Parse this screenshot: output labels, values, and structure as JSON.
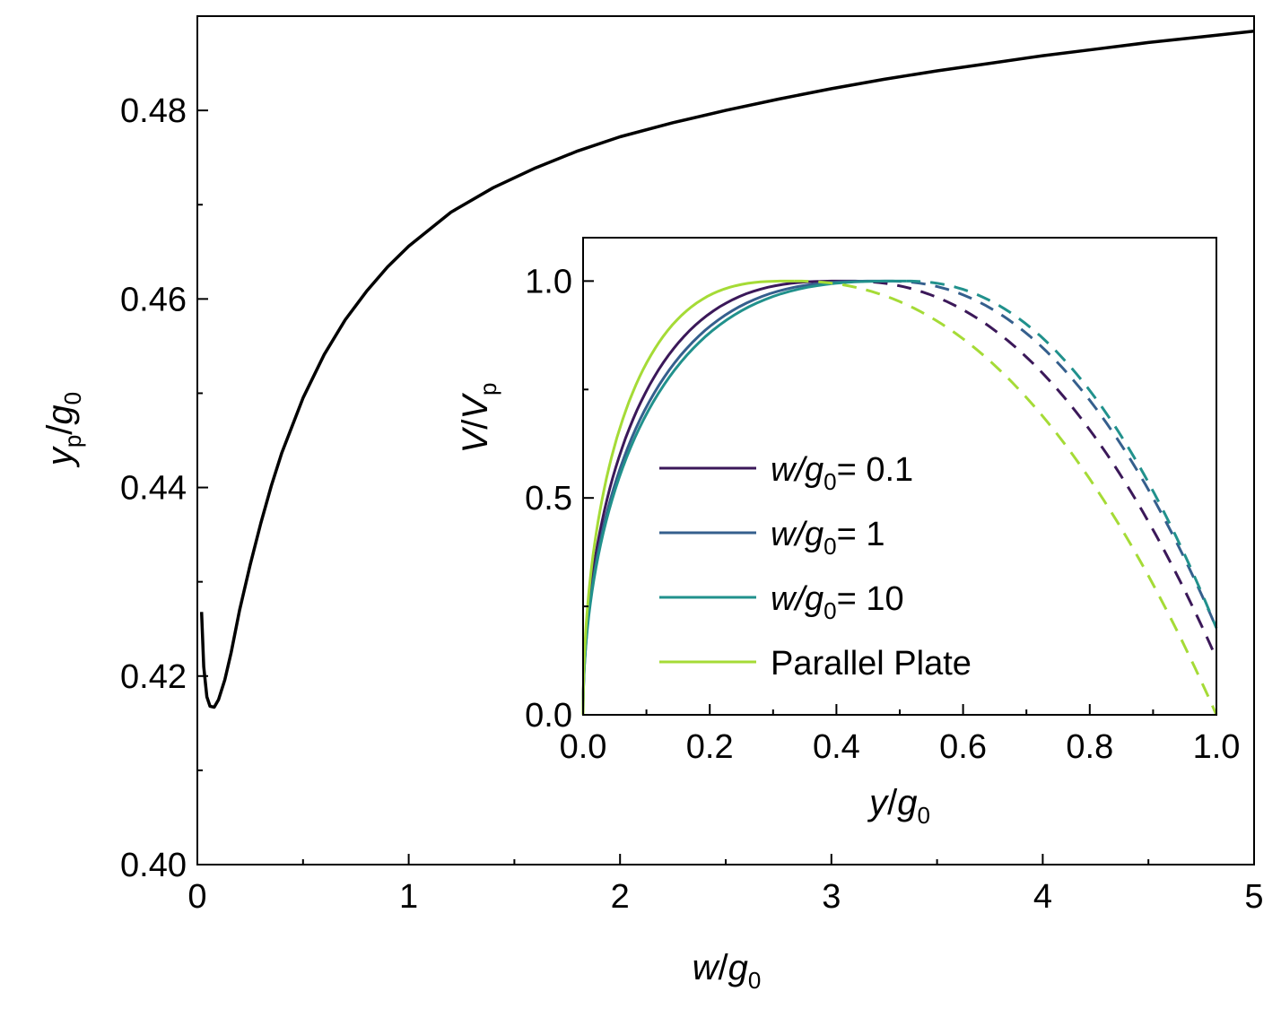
{
  "chart_data": [
    {
      "type": "line",
      "xlabel": {
        "base": "w",
        "sep": "/",
        "var": "g",
        "sub": "0"
      },
      "ylabel": {
        "base": "y",
        "base_sub": "p",
        "sep": "/",
        "var": "g",
        "sub": "0"
      },
      "xlim": [
        0,
        5
      ],
      "ylim": [
        0.4,
        0.49
      ],
      "xticks": [
        "0",
        "1",
        "2",
        "3",
        "4",
        "5"
      ],
      "xtick_values": [
        0,
        1,
        2,
        3,
        4,
        5
      ],
      "yticks": [
        "0.40",
        "0.42",
        "0.44",
        "0.46",
        "0.48"
      ],
      "ytick_values": [
        0.4,
        0.42,
        0.44,
        0.46,
        0.48
      ],
      "grid": false,
      "series": [
        {
          "color": "#000000",
          "x": [
            0.02,
            0.03,
            0.045,
            0.06,
            0.08,
            0.1,
            0.13,
            0.16,
            0.2,
            0.25,
            0.3,
            0.35,
            0.4,
            0.5,
            0.6,
            0.7,
            0.8,
            0.9,
            1.0,
            1.2,
            1.4,
            1.6,
            1.8,
            2.0,
            2.25,
            2.5,
            2.75,
            3.0,
            3.25,
            3.5,
            3.75,
            4.0,
            4.25,
            4.5,
            4.75,
            5.0
          ],
          "y": [
            0.4268,
            0.421,
            0.4178,
            0.4168,
            0.4167,
            0.4175,
            0.4196,
            0.4225,
            0.427,
            0.4318,
            0.4362,
            0.4402,
            0.4437,
            0.4495,
            0.4541,
            0.4578,
            0.4608,
            0.4634,
            0.4656,
            0.4692,
            0.4718,
            0.4739,
            0.4757,
            0.4772,
            0.4787,
            0.48,
            0.4812,
            0.4823,
            0.4833,
            0.4842,
            0.485,
            0.4858,
            0.4865,
            0.4872,
            0.4878,
            0.4884
          ]
        }
      ]
    },
    {
      "type": "line",
      "xlabel": {
        "base": "y",
        "sep": "/",
        "var": "g",
        "sub": "0"
      },
      "ylabel": {
        "base": "V",
        "sep": "/",
        "var": "V",
        "sub": "p"
      },
      "xlim": [
        0,
        1.0
      ],
      "ylim": [
        0,
        1.1
      ],
      "xticks": [
        "0.0",
        "0.2",
        "0.4",
        "0.6",
        "0.8",
        "1.0"
      ],
      "xtick_values": [
        0.0,
        0.2,
        0.4,
        0.6,
        0.8,
        1.0
      ],
      "yticks": [
        "0.0",
        "0.5",
        "1.0"
      ],
      "ytick_values": [
        0.0,
        0.5,
        1.0
      ],
      "grid": false,
      "legend_position": "center-right",
      "series": [
        {
          "name": "= 0.1",
          "label_var": "w/g",
          "label_sub": "0",
          "label_val": "= 0.1",
          "color": "#3b1859",
          "peak_x": 0.42,
          "end_y": 0.13
        },
        {
          "name": "= 1",
          "label_var": "w/g",
          "label_sub": "0",
          "label_val": "= 1",
          "color": "#355f8d",
          "peak_x": 0.48,
          "end_y": 0.2
        },
        {
          "name": "= 10",
          "label_var": "w/g",
          "label_sub": "0",
          "label_val": "= 10",
          "color": "#21918c",
          "peak_x": 0.51,
          "end_y": 0.2
        },
        {
          "name": "Parallel Plate",
          "label_text": "Parallel Plate",
          "color": "#a5db36",
          "peak_x": 0.3333,
          "end_y": 0.0
        }
      ]
    }
  ]
}
